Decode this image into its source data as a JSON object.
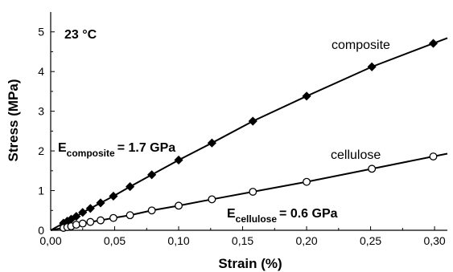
{
  "chart_data": {
    "type": "line",
    "xlabel": "Strain (%)",
    "ylabel": "Stress (MPa)",
    "xlim": [
      0.0,
      0.31
    ],
    "ylim": [
      0,
      5.5
    ],
    "x_ticks": [
      "0,00",
      "0,05",
      "0,10",
      "0,15",
      "0,20",
      "0,25",
      "0,30"
    ],
    "x_tick_values": [
      0.0,
      0.05,
      0.1,
      0.15,
      0.2,
      0.25,
      0.3
    ],
    "y_ticks": [
      "0",
      "1",
      "2",
      "3",
      "4",
      "5"
    ],
    "y_tick_values": [
      0,
      1,
      2,
      3,
      4,
      5
    ],
    "series": [
      {
        "name": "composite",
        "marker": "filled-diamond",
        "x": [
          0.01,
          0.013,
          0.016,
          0.02,
          0.025,
          0.031,
          0.039,
          0.049,
          0.062,
          0.079,
          0.1,
          0.126,
          0.158,
          0.2,
          0.251,
          0.299
        ],
        "values": [
          0.18,
          0.23,
          0.28,
          0.35,
          0.45,
          0.55,
          0.69,
          0.86,
          1.1,
          1.4,
          1.77,
          2.2,
          2.75,
          3.38,
          4.12,
          4.71
        ]
      },
      {
        "name": "cellulose",
        "marker": "open-circle",
        "x": [
          0.01,
          0.013,
          0.016,
          0.02,
          0.025,
          0.031,
          0.039,
          0.049,
          0.062,
          0.079,
          0.1,
          0.126,
          0.158,
          0.2,
          0.251,
          0.299
        ],
        "values": [
          0.06,
          0.08,
          0.1,
          0.14,
          0.17,
          0.21,
          0.25,
          0.31,
          0.38,
          0.5,
          0.62,
          0.78,
          0.97,
          1.22,
          1.55,
          1.86
        ]
      }
    ],
    "annotations": {
      "temperature": "23 °C",
      "composite_label": "composite",
      "cellulose_label": "cellulose",
      "E_composite": {
        "symbol": "E",
        "subscript": "composite",
        "value": "= 1.7 GPa"
      },
      "E_cellulose": {
        "symbol": "E",
        "subscript": "cellulose",
        "value": "= 0.6 GPa"
      }
    }
  }
}
